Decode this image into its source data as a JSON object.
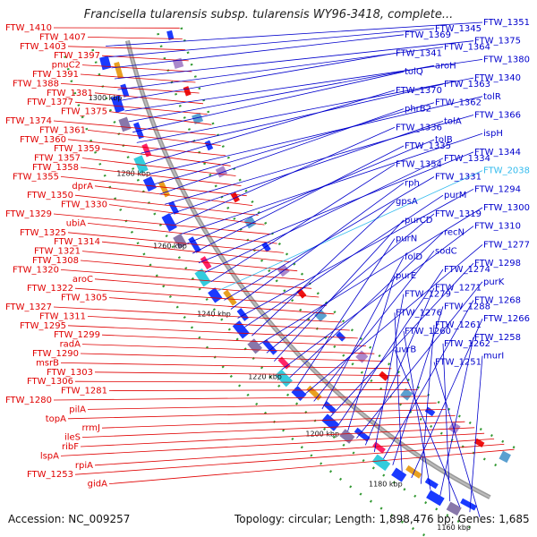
{
  "title": "Francisella tularensis subsp. tularensis WY96-3418, complete...",
  "footer": {
    "accession": "Accession: NC_009257",
    "topology": "Topology: circular; Length: 1,898,476 bp; Genes: 1,685"
  },
  "colors": {
    "left_labels": "#e00000",
    "right_labels": "#0000cc",
    "highlight": "#33bbee"
  },
  "kbp_ticks": [
    "1300 kbp",
    "1280 kbp",
    "1260 kbp",
    "1240 kbp",
    "1220 kbp",
    "1200 kbp",
    "1180 kbp",
    "1160 kbp"
  ],
  "left_labels": [
    "FTW_1410",
    "FTW_1407",
    "FTW_1403",
    "FTW_1397",
    "pnuC2",
    "FTW_1391",
    "FTW_1388",
    "FTW_1381",
    "FTW_1377",
    "FTW_1375",
    "FTW_1374",
    "FTW_1361",
    "FTW_1360",
    "FTW_1359",
    "FTW_1357",
    "FTW_1358",
    "FTW_1355",
    "dprA",
    "FTW_1350",
    "FTW_1330",
    "FTW_1329",
    "ubiA",
    "FTW_1325",
    "FTW_1314",
    "FTW_1321",
    "FTW_1308",
    "FTW_1320",
    "aroC",
    "FTW_1322",
    "FTW_1305",
    "FTW_1327",
    "FTW_1311",
    "FTW_1295",
    "FTW_1299",
    "radA",
    "FTW_1290",
    "msrB",
    "FTW_1303",
    "FTW_1306",
    "FTW_1281",
    "FTW_1280",
    "pilA",
    "topA",
    "rrmJ",
    "ileS",
    "ribF",
    "lspA",
    "rpiA",
    "FTW_1253",
    "gidA"
  ],
  "right_labels": [
    "FTW_1351",
    "FTW_1345",
    "FTW_1369",
    "FTW_1375",
    "FTW_1364",
    "FTW_1341",
    "FTW_1380",
    "aroH",
    "tolQ",
    "FTW_1340",
    "FTW_1363",
    "FTW_1370",
    "tolR",
    "FTW_1362",
    "phrB2",
    "FTW_1366",
    "tolA",
    "FTW_1336",
    "ispH",
    "tolB",
    "FTW_1335",
    "FTW_1344",
    "FTW_1334",
    "FTW_1354",
    "FTW_2038",
    "FTW_1331",
    "rph",
    "FTW_1294",
    "purM",
    "gpsA",
    "FTW_1300",
    "FTW_1319",
    "purCD",
    "FTW_1310",
    "recN",
    "purN",
    "FTW_1277",
    "sodC",
    "folD",
    "FTW_1298",
    "FTW_1274",
    "purE",
    "purK",
    "FTW_1271",
    "FTW_1279",
    "FTW_1268",
    "FTW_1288",
    "FTW_1276",
    "FTW_1266",
    "FTW_1261",
    "FTW_1260",
    "FTW_1258",
    "FTW_1262",
    "uvrB",
    "murI",
    "FTW_1251"
  ]
}
